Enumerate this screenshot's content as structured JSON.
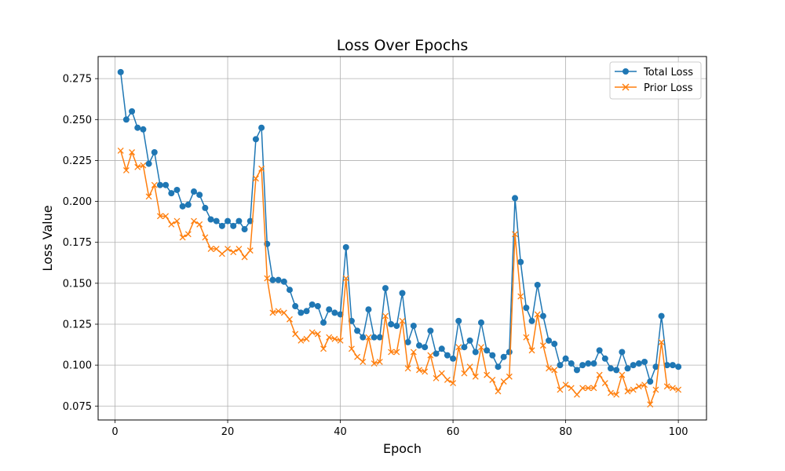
{
  "chart_data": {
    "type": "line",
    "title": "Loss Over Epochs",
    "xlabel": "Epoch",
    "ylabel": "Loss Value",
    "xlim": [
      -3,
      105
    ],
    "ylim": [
      0.0665,
      0.2885
    ],
    "xticks": [
      0,
      20,
      40,
      60,
      80,
      100
    ],
    "xtick_labels": [
      "0",
      "20",
      "40",
      "60",
      "80",
      "100"
    ],
    "yticks": [
      0.075,
      0.1,
      0.125,
      0.15,
      0.175,
      0.2,
      0.225,
      0.25,
      0.275
    ],
    "ytick_labels": [
      "0.075",
      "0.100",
      "0.125",
      "0.150",
      "0.175",
      "0.200",
      "0.225",
      "0.250",
      "0.275"
    ],
    "grid": true,
    "legend_position": "top-right",
    "x": [
      1,
      2,
      3,
      4,
      5,
      6,
      7,
      8,
      9,
      10,
      11,
      12,
      13,
      14,
      15,
      16,
      17,
      18,
      19,
      20,
      21,
      22,
      23,
      24,
      25,
      26,
      27,
      28,
      29,
      30,
      31,
      32,
      33,
      34,
      35,
      36,
      37,
      38,
      39,
      40,
      41,
      42,
      43,
      44,
      45,
      46,
      47,
      48,
      49,
      50,
      51,
      52,
      53,
      54,
      55,
      56,
      57,
      58,
      59,
      60,
      61,
      62,
      63,
      64,
      65,
      66,
      67,
      68,
      69,
      70,
      71,
      72,
      73,
      74,
      75,
      76,
      77,
      78,
      79,
      80,
      81,
      82,
      83,
      84,
      85,
      86,
      87,
      88,
      89,
      90,
      91,
      92,
      93,
      94,
      95,
      96,
      97,
      98,
      99,
      100
    ],
    "series": [
      {
        "name": "Total Loss",
        "color": "#1f77b4",
        "marker": "circle",
        "values": [
          0.279,
          0.25,
          0.255,
          0.245,
          0.244,
          0.223,
          0.23,
          0.21,
          0.21,
          0.205,
          0.207,
          0.197,
          0.198,
          0.206,
          0.204,
          0.196,
          0.189,
          0.188,
          0.185,
          0.188,
          0.185,
          0.188,
          0.183,
          0.188,
          0.238,
          0.245,
          0.174,
          0.152,
          0.152,
          0.151,
          0.146,
          0.136,
          0.132,
          0.133,
          0.137,
          0.136,
          0.126,
          0.134,
          0.132,
          0.131,
          0.172,
          0.127,
          0.121,
          0.117,
          0.134,
          0.117,
          0.117,
          0.147,
          0.125,
          0.124,
          0.144,
          0.114,
          0.124,
          0.112,
          0.111,
          0.121,
          0.107,
          0.11,
          0.106,
          0.104,
          0.127,
          0.111,
          0.115,
          0.108,
          0.126,
          0.109,
          0.106,
          0.099,
          0.105,
          0.108,
          0.202,
          0.163,
          0.135,
          0.127,
          0.149,
          0.13,
          0.115,
          0.113,
          0.1,
          0.104,
          0.101,
          0.097,
          0.1,
          0.101,
          0.101,
          0.109,
          0.104,
          0.098,
          0.097,
          0.108,
          0.098,
          0.1,
          0.101,
          0.102,
          0.09,
          0.099,
          0.13,
          0.1,
          0.1,
          0.099
        ]
      },
      {
        "name": "Prior Loss",
        "color": "#ff7f0e",
        "marker": "x",
        "values": [
          0.231,
          0.219,
          0.23,
          0.221,
          0.222,
          0.203,
          0.21,
          0.191,
          0.191,
          0.186,
          0.188,
          0.178,
          0.18,
          0.188,
          0.186,
          0.178,
          0.171,
          0.171,
          0.168,
          0.171,
          0.169,
          0.171,
          0.166,
          0.17,
          0.214,
          0.22,
          0.153,
          0.132,
          0.133,
          0.132,
          0.128,
          0.119,
          0.115,
          0.116,
          0.12,
          0.119,
          0.11,
          0.117,
          0.116,
          0.115,
          0.153,
          0.11,
          0.105,
          0.102,
          0.117,
          0.101,
          0.102,
          0.13,
          0.108,
          0.108,
          0.127,
          0.098,
          0.108,
          0.097,
          0.096,
          0.106,
          0.092,
          0.095,
          0.091,
          0.089,
          0.111,
          0.095,
          0.099,
          0.093,
          0.111,
          0.094,
          0.091,
          0.084,
          0.09,
          0.093,
          0.18,
          0.142,
          0.117,
          0.109,
          0.131,
          0.112,
          0.098,
          0.097,
          0.085,
          0.088,
          0.086,
          0.082,
          0.086,
          0.086,
          0.086,
          0.094,
          0.089,
          0.083,
          0.082,
          0.094,
          0.084,
          0.085,
          0.087,
          0.088,
          0.076,
          0.085,
          0.114,
          0.087,
          0.086,
          0.085
        ]
      }
    ]
  }
}
